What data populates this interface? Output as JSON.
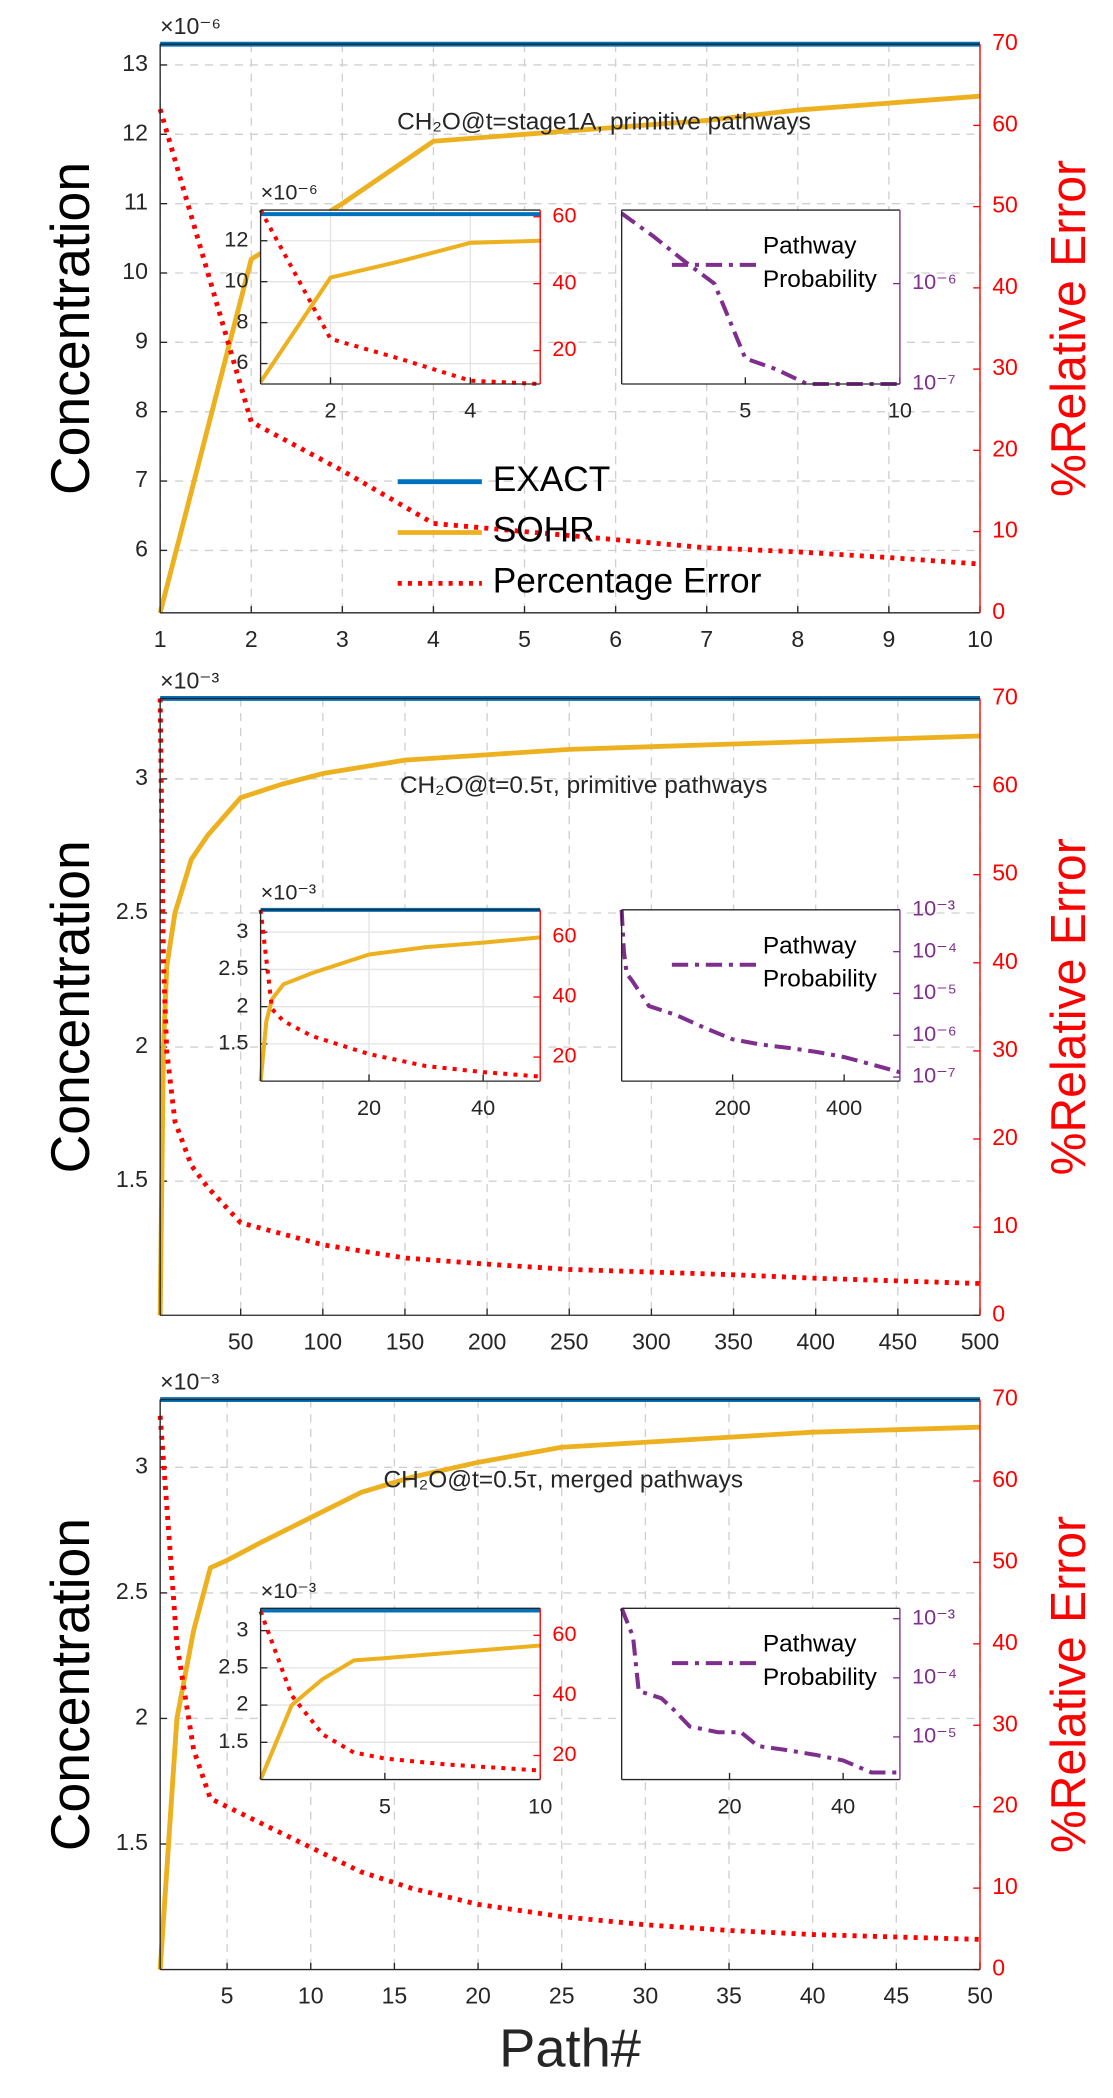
{
  "chart_data": [
    {
      "type": "line",
      "title": "CH₂O@t=stage1A, primitive pathways",
      "y_multiplier": "×10⁻⁶",
      "ylabel": "Concentration",
      "y2label": "%Relative Error",
      "y2color": "#ff0000",
      "grid": true,
      "legend": "southwest",
      "xlim": [
        1,
        10
      ],
      "xticks": [
        1,
        2,
        3,
        4,
        5,
        6,
        7,
        8,
        9,
        10
      ],
      "ylim": [
        5.1,
        13.3
      ],
      "yticks": [
        6,
        7,
        8,
        9,
        10,
        11,
        12,
        13
      ],
      "y2lim": [
        0,
        70
      ],
      "y2ticks": [
        0,
        10,
        20,
        30,
        40,
        50,
        60,
        70
      ],
      "series": [
        {
          "name": "EXACT",
          "color": "#0072bd",
          "style": "solid",
          "x": [
            1,
            10
          ],
          "values": [
            13.3,
            13.3
          ]
        },
        {
          "name": "SOHR",
          "color": "#edb120",
          "style": "solid",
          "x": [
            1,
            2,
            3,
            4,
            5,
            6,
            7,
            8,
            9,
            10
          ],
          "values": [
            5.1,
            10.2,
            11.0,
            11.9,
            12.0,
            12.1,
            12.2,
            12.35,
            12.45,
            12.55
          ]
        },
        {
          "name": "Percentage Error",
          "color": "#ff0000",
          "style": "dotted",
          "axis": "y2",
          "x": [
            1,
            2,
            3,
            4,
            5,
            6,
            7,
            8,
            9,
            10
          ],
          "values": [
            62,
            23.5,
            17.5,
            11,
            10,
            9,
            8,
            7.5,
            6.8,
            6
          ]
        }
      ]
    },
    {
      "type": "line",
      "y_multiplier": "×10⁻⁶",
      "y2color": "#ff0000",
      "grid": true,
      "xlim": [
        1,
        5
      ],
      "xticks": [
        2,
        4
      ],
      "ylim": [
        5,
        13.5
      ],
      "yticks": [
        6,
        8,
        10,
        12
      ],
      "y2lim": [
        10,
        62
      ],
      "y2ticks": [
        20,
        40,
        60
      ],
      "series": [
        {
          "color": "#0072bd",
          "style": "solid",
          "x": [
            1,
            5
          ],
          "values": [
            13.3,
            13.3
          ]
        },
        {
          "color": "#edb120",
          "style": "solid",
          "x": [
            1,
            2,
            3,
            4,
            5
          ],
          "values": [
            5.1,
            10.2,
            11.0,
            11.9,
            12.0
          ]
        },
        {
          "color": "#ff0000",
          "style": "dotted",
          "axis": "y2",
          "x": [
            1,
            2,
            3,
            4,
            5
          ],
          "values": [
            62,
            23.5,
            17.5,
            11,
            10
          ]
        }
      ]
    },
    {
      "type": "line",
      "y2color": "#7e2f8e",
      "grid": false,
      "legend": "northeast",
      "y2log": true,
      "xlim": [
        1,
        10
      ],
      "xticks": [
        5,
        10
      ],
      "y2lim": [
        1e-07,
        5.4e-06
      ],
      "y2ticks": [
        {
          "value": 1e-06,
          "label": "10⁻⁶"
        },
        {
          "value": 1e-07,
          "label": "10⁻⁷"
        }
      ],
      "series": [
        {
          "name": "Pathway Probability",
          "color": "#7e2f8e",
          "style": "dashdot",
          "axis": "y2",
          "x": [
            1,
            2,
            3,
            4,
            5,
            6,
            7,
            8,
            9,
            10
          ],
          "values": [
            5e-06,
            3e-06,
            1.7e-06,
            1e-06,
            1.8e-07,
            1.4e-07,
            1e-07,
            1e-07,
            1e-07,
            1e-07
          ]
        }
      ]
    },
    {
      "type": "line",
      "title": "CH₂O@t=0.5τ, primitive pathways",
      "y_multiplier": "×10⁻³",
      "ylabel": "Concentration",
      "y2label": "%Relative Error",
      "y2color": "#ff0000",
      "grid": true,
      "xlim": [
        1,
        500
      ],
      "xticks": [
        50,
        100,
        150,
        200,
        250,
        300,
        350,
        400,
        450,
        500
      ],
      "ylim": [
        1.0,
        3.3
      ],
      "yticks": [
        1.5,
        2,
        2.5,
        3
      ],
      "y2lim": [
        0,
        70
      ],
      "y2ticks": [
        0,
        10,
        20,
        30,
        40,
        50,
        60,
        70
      ],
      "series": [
        {
          "color": "#0072bd",
          "style": "solid",
          "x": [
            1,
            500
          ],
          "values": [
            3.3,
            3.3
          ]
        },
        {
          "color": "#edb120",
          "style": "solid",
          "x": [
            1,
            3,
            5,
            10,
            20,
            30,
            50,
            75,
            100,
            150,
            200,
            250,
            300,
            350,
            400,
            450,
            500
          ],
          "values": [
            1.0,
            2.0,
            2.3,
            2.5,
            2.7,
            2.79,
            2.93,
            2.98,
            3.02,
            3.07,
            3.09,
            3.11,
            3.12,
            3.13,
            3.14,
            3.15,
            3.16
          ]
        },
        {
          "color": "#ff0000",
          "style": "dotted",
          "axis": "y2",
          "x": [
            1,
            3,
            5,
            10,
            20,
            30,
            50,
            100,
            150,
            200,
            250,
            300,
            350,
            400,
            450,
            500
          ],
          "values": [
            70,
            40,
            30,
            22,
            17,
            14.5,
            10.5,
            8,
            6.5,
            5.8,
            5.2,
            4.9,
            4.6,
            4.2,
            3.9,
            3.6
          ]
        }
      ]
    },
    {
      "type": "line",
      "y_multiplier": "×10⁻³",
      "y2color": "#ff0000",
      "grid": true,
      "xlim": [
        1,
        50
      ],
      "xticks": [
        20,
        40
      ],
      "ylim": [
        1.0,
        3.3
      ],
      "yticks": [
        1.5,
        2,
        2.5,
        3
      ],
      "y2lim": [
        12,
        69
      ],
      "y2ticks": [
        20,
        40,
        60
      ],
      "series": [
        {
          "color": "#0072bd",
          "style": "solid",
          "x": [
            1,
            50
          ],
          "values": [
            3.3,
            3.3
          ]
        },
        {
          "color": "#edb120",
          "style": "solid",
          "x": [
            1,
            2,
            3,
            5,
            10,
            20,
            30,
            40,
            50
          ],
          "values": [
            1.0,
            1.8,
            2.1,
            2.3,
            2.45,
            2.7,
            2.8,
            2.86,
            2.93
          ]
        },
        {
          "color": "#ff0000",
          "style": "dotted",
          "axis": "y2",
          "x": [
            1,
            3,
            5,
            10,
            20,
            30,
            40,
            50
          ],
          "values": [
            69,
            36,
            32,
            27,
            21,
            17,
            15,
            13.5
          ]
        }
      ]
    },
    {
      "type": "line",
      "y2color": "#7e2f8e",
      "grid": false,
      "legend": "northeast",
      "y2log": true,
      "xlim": [
        1,
        500
      ],
      "xticks": [
        200,
        400
      ],
      "y2lim": [
        8e-08,
        0.001
      ],
      "y2ticks": [
        {
          "value": 0.001,
          "label": "10⁻³"
        },
        {
          "value": 0.0001,
          "label": "10⁻⁴"
        },
        {
          "value": 1e-05,
          "label": "10⁻⁵"
        },
        {
          "value": 1e-06,
          "label": "10⁻⁶"
        },
        {
          "value": 1e-07,
          "label": "10⁻⁷"
        }
      ],
      "series": [
        {
          "name": "Pathway Probability",
          "color": "#7e2f8e",
          "style": "dashdot",
          "axis": "y2",
          "x": [
            1,
            5,
            10,
            20,
            50,
            100,
            150,
            200,
            250,
            300,
            350,
            400,
            450,
            500
          ],
          "values": [
            0.001,
            0.0001,
            3e-05,
            2e-05,
            5e-06,
            3e-06,
            1.5e-06,
            8e-07,
            6e-07,
            5e-07,
            4e-07,
            3e-07,
            2e-07,
            1.3e-07
          ]
        }
      ]
    },
    {
      "type": "line",
      "title": "CH₂O@t=0.5τ, merged pathways",
      "y_multiplier": "×10⁻³",
      "ylabel": "Concentration",
      "y2label": "%Relative Error",
      "xlabel": "Path#",
      "y2color": "#ff0000",
      "grid": true,
      "xlim": [
        1,
        50
      ],
      "xticks": [
        5,
        10,
        15,
        20,
        25,
        30,
        35,
        40,
        45,
        50
      ],
      "ylim": [
        1.0,
        3.27
      ],
      "yticks": [
        1.5,
        2,
        2.5,
        3
      ],
      "y2lim": [
        0,
        70
      ],
      "y2ticks": [
        0,
        10,
        20,
        30,
        40,
        50,
        60,
        70
      ],
      "series": [
        {
          "color": "#0072bd",
          "style": "solid",
          "x": [
            1,
            50
          ],
          "values": [
            3.27,
            3.27
          ]
        },
        {
          "color": "#edb120",
          "style": "solid",
          "x": [
            1,
            2,
            3,
            4,
            5,
            7,
            10,
            13,
            16,
            20,
            25,
            30,
            35,
            40,
            45,
            50
          ],
          "values": [
            1.0,
            2.0,
            2.35,
            2.6,
            2.63,
            2.7,
            2.8,
            2.9,
            2.96,
            3.02,
            3.08,
            3.1,
            3.12,
            3.14,
            3.15,
            3.16
          ]
        },
        {
          "color": "#ff0000",
          "style": "dotted",
          "axis": "y2",
          "x": [
            1,
            2,
            3,
            4,
            7,
            10,
            13,
            16,
            20,
            25,
            30,
            35,
            40,
            45,
            50
          ],
          "values": [
            68,
            40,
            27,
            21,
            18,
            15,
            12,
            10,
            8,
            6.5,
            5.5,
            4.8,
            4.3,
            4,
            3.7
          ]
        }
      ]
    },
    {
      "type": "line",
      "y_multiplier": "×10⁻³",
      "y2color": "#ff0000",
      "grid": true,
      "xlim": [
        1,
        10
      ],
      "xticks": [
        5,
        10
      ],
      "ylim": [
        1.0,
        3.3
      ],
      "yticks": [
        1.5,
        2,
        2.5,
        3
      ],
      "y2lim": [
        12,
        69
      ],
      "y2ticks": [
        20,
        40,
        60
      ],
      "series": [
        {
          "color": "#0072bd",
          "style": "solid",
          "x": [
            1,
            10
          ],
          "values": [
            3.27,
            3.27
          ]
        },
        {
          "color": "#edb120",
          "style": "solid",
          "x": [
            1,
            2,
            3,
            4,
            5,
            7,
            10
          ],
          "values": [
            1.0,
            2.0,
            2.35,
            2.6,
            2.63,
            2.7,
            2.8
          ]
        },
        {
          "color": "#ff0000",
          "style": "dotted",
          "axis": "y2",
          "x": [
            1,
            2,
            3,
            4,
            5,
            7,
            10
          ],
          "values": [
            68,
            40,
            27,
            21,
            19,
            17,
            15
          ]
        }
      ]
    },
    {
      "type": "line",
      "y2color": "#7e2f8e",
      "grid": false,
      "legend": "northeast",
      "y2log": true,
      "xlim": [
        1,
        50
      ],
      "xticks": [
        20,
        40
      ],
      "y2lim": [
        1.9e-06,
        0.0015
      ],
      "y2ticks": [
        {
          "value": 0.001,
          "label": "10⁻³"
        },
        {
          "value": 0.0001,
          "label": "10⁻⁴"
        },
        {
          "value": 1e-05,
          "label": "10⁻⁵"
        }
      ],
      "series": [
        {
          "name": "Pathway Probability",
          "color": "#7e2f8e",
          "style": "dashdot",
          "axis": "y2",
          "x": [
            1,
            3,
            4,
            8,
            10,
            13,
            18,
            22,
            25,
            30,
            35,
            40,
            45,
            50
          ],
          "values": [
            0.0015,
            0.0005,
            6e-05,
            4.5e-05,
            3e-05,
            1.5e-05,
            1.2e-05,
            1.2e-05,
            7e-06,
            6e-06,
            5e-06,
            4e-06,
            2.5e-06,
            2.5e-06
          ]
        }
      ]
    }
  ]
}
